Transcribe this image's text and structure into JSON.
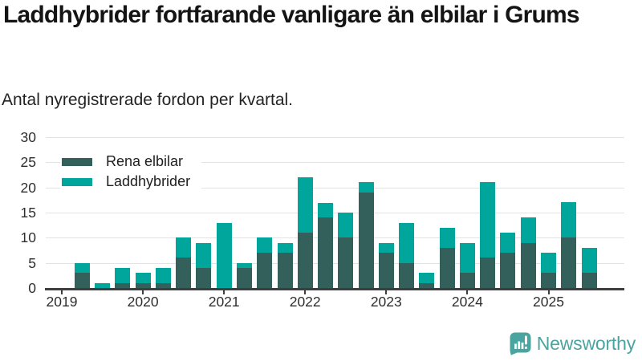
{
  "header": {
    "title": "Laddhybrider fortfarande vanligare än elbilar i Grums",
    "subtitle": "Antal nyregistrerade fordon per kvartal."
  },
  "footer": {
    "brand": "Newsworthy",
    "brand_color": "#4AA49F"
  },
  "chart_data": {
    "type": "bar",
    "stacked": true,
    "title": "Laddhybrider fortfarande vanligare än elbilar i Grums",
    "subtitle": "Antal nyregistrerade fordon per kvartal.",
    "grid": "horizontal",
    "legend_position": "top-left-inside",
    "ylim": [
      0,
      30
    ],
    "y_ticks": [
      0,
      5,
      10,
      15,
      20,
      25,
      30
    ],
    "x_year_labels": [
      "2019",
      "2020",
      "2021",
      "2022",
      "2023",
      "2024",
      "2025"
    ],
    "categories": [
      "2019 Q1",
      "2019 Q2",
      "2019 Q3",
      "2019 Q4",
      "2020 Q1",
      "2020 Q2",
      "2020 Q3",
      "2020 Q4",
      "2021 Q1",
      "2021 Q2",
      "2021 Q3",
      "2021 Q4",
      "2022 Q1",
      "2022 Q2",
      "2022 Q3",
      "2022 Q4",
      "2023 Q1",
      "2023 Q2",
      "2023 Q3",
      "2023 Q4",
      "2024 Q1",
      "2024 Q2",
      "2024 Q3",
      "2024 Q4",
      "2025 Q1",
      "2025 Q2",
      "2025 Q3"
    ],
    "series": [
      {
        "name": "Rena elbilar",
        "color": "#33605B",
        "values": [
          0,
          3,
          0,
          1,
          1,
          1,
          6,
          4,
          0,
          4,
          7,
          7,
          11,
          14,
          10,
          19,
          7,
          5,
          1,
          8,
          3,
          6,
          7,
          9,
          3,
          10,
          3
        ]
      },
      {
        "name": "Laddhybrider",
        "color": "#00A59B",
        "values": [
          0,
          2,
          1,
          3,
          2,
          3,
          4,
          5,
          13,
          1,
          3,
          2,
          11,
          3,
          5,
          2,
          2,
          8,
          2,
          4,
          6,
          15,
          4,
          5,
          4,
          7,
          5
        ]
      }
    ],
    "totals": [
      0,
      5,
      1,
      4,
      3,
      4,
      10,
      9,
      13,
      5,
      10,
      9,
      22,
      17,
      15,
      21,
      9,
      13,
      3,
      12,
      9,
      21,
      11,
      14,
      7,
      17,
      8
    ]
  }
}
